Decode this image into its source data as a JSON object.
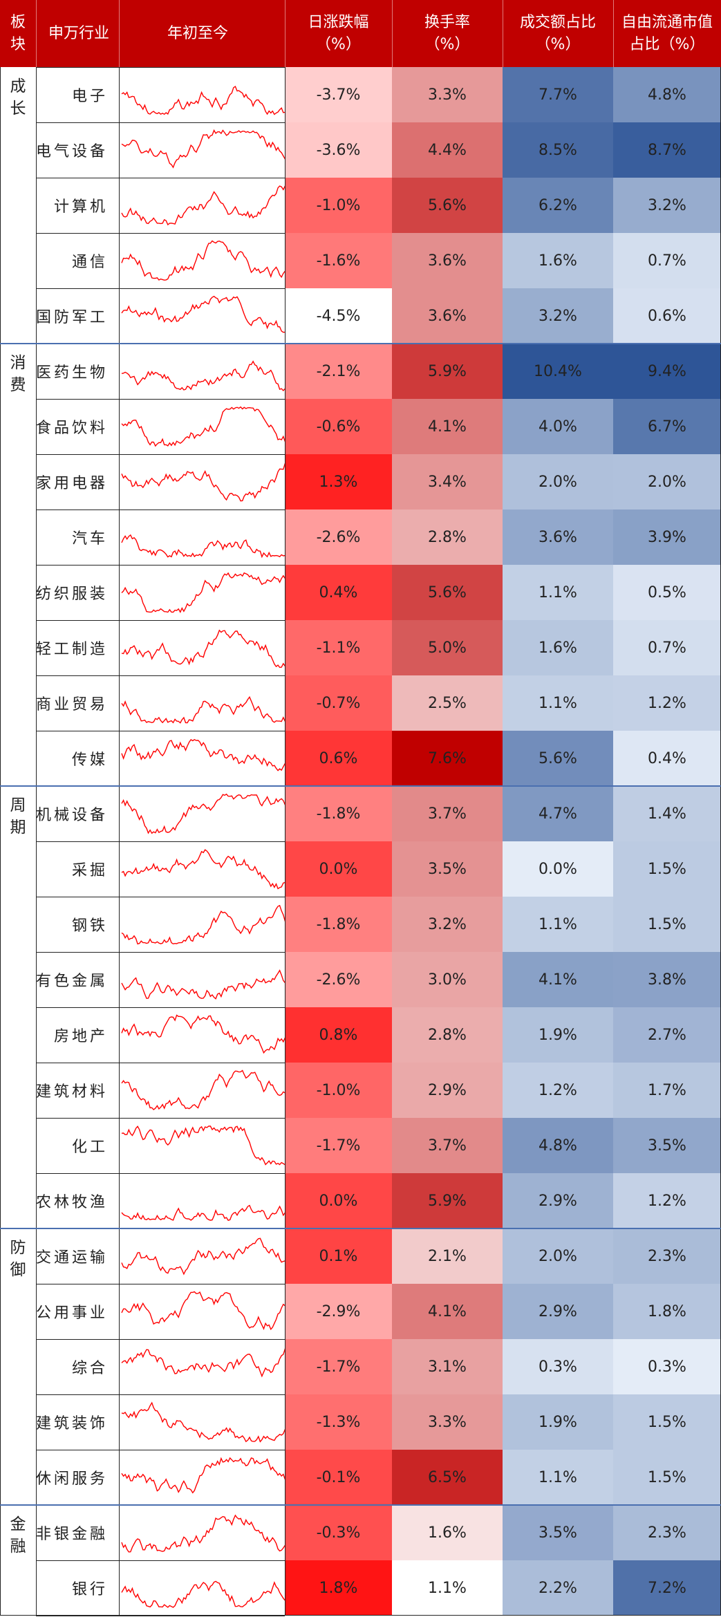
{
  "headers": {
    "sector": [
      "板",
      "块"
    ],
    "industry": [
      "申万行业"
    ],
    "ytd": [
      "年初至今"
    ],
    "daily_change": [
      "日涨跌幅",
      "（%）"
    ],
    "turnover": [
      "换手率",
      "（%）"
    ],
    "volume_share": [
      "成交额占比",
      "（%）"
    ],
    "float_cap_share": [
      "自由流通市值",
      "占比（%）"
    ]
  },
  "sectors": [
    {
      "name": [
        "成",
        "长"
      ],
      "rows": 5
    },
    {
      "name": [
        "消",
        "费"
      ],
      "rows": 8
    },
    {
      "name": [
        "周",
        "期"
      ],
      "rows": 8
    },
    {
      "name": [
        "防",
        "御"
      ],
      "rows": 5
    },
    {
      "name": [
        "金",
        "融"
      ],
      "rows": 2
    }
  ],
  "chart_data": {
    "type": "table",
    "columns": [
      "申万行业",
      "年初至今",
      "日涨跌幅（%）",
      "换手率（%）",
      "成交额占比（%）",
      "自由流通市值占比（%）"
    ],
    "rows": [
      {
        "industry": "电子",
        "daily_change": "-3.7%",
        "turnover": "3.3%",
        "volume_share": "7.7%",
        "float_cap_share": "4.8%",
        "dc": -3.7,
        "to": 3.3,
        "vs": 7.7,
        "fc": 4.8
      },
      {
        "industry": "电气设备",
        "daily_change": "-3.6%",
        "turnover": "4.4%",
        "volume_share": "8.5%",
        "float_cap_share": "8.7%",
        "dc": -3.6,
        "to": 4.4,
        "vs": 8.5,
        "fc": 8.7
      },
      {
        "industry": "计算机",
        "daily_change": "-1.0%",
        "turnover": "5.6%",
        "volume_share": "6.2%",
        "float_cap_share": "3.2%",
        "dc": -1.0,
        "to": 5.6,
        "vs": 6.2,
        "fc": 3.2
      },
      {
        "industry": "通信",
        "daily_change": "-1.6%",
        "turnover": "3.6%",
        "volume_share": "1.6%",
        "float_cap_share": "0.7%",
        "dc": -1.6,
        "to": 3.6,
        "vs": 1.6,
        "fc": 0.7
      },
      {
        "industry": "国防军工",
        "daily_change": "-4.5%",
        "turnover": "3.6%",
        "volume_share": "3.2%",
        "float_cap_share": "0.6%",
        "dc": -4.5,
        "to": 3.6,
        "vs": 3.2,
        "fc": 0.6
      },
      {
        "industry": "医药生物",
        "daily_change": "-2.1%",
        "turnover": "5.9%",
        "volume_share": "10.4%",
        "float_cap_share": "9.4%",
        "dc": -2.1,
        "to": 5.9,
        "vs": 10.4,
        "fc": 9.4
      },
      {
        "industry": "食品饮料",
        "daily_change": "-0.6%",
        "turnover": "4.1%",
        "volume_share": "4.0%",
        "float_cap_share": "6.7%",
        "dc": -0.6,
        "to": 4.1,
        "vs": 4.0,
        "fc": 6.7
      },
      {
        "industry": "家用电器",
        "daily_change": "1.3%",
        "turnover": "3.4%",
        "volume_share": "2.0%",
        "float_cap_share": "2.0%",
        "dc": 1.3,
        "to": 3.4,
        "vs": 2.0,
        "fc": 2.0
      },
      {
        "industry": "汽车",
        "daily_change": "-2.6%",
        "turnover": "2.8%",
        "volume_share": "3.6%",
        "float_cap_share": "3.9%",
        "dc": -2.6,
        "to": 2.8,
        "vs": 3.6,
        "fc": 3.9
      },
      {
        "industry": "纺织服装",
        "daily_change": "0.4%",
        "turnover": "5.6%",
        "volume_share": "1.1%",
        "float_cap_share": "0.5%",
        "dc": 0.4,
        "to": 5.6,
        "vs": 1.1,
        "fc": 0.5
      },
      {
        "industry": "轻工制造",
        "daily_change": "-1.1%",
        "turnover": "5.0%",
        "volume_share": "1.6%",
        "float_cap_share": "0.7%",
        "dc": -1.1,
        "to": 5.0,
        "vs": 1.6,
        "fc": 0.7
      },
      {
        "industry": "商业贸易",
        "daily_change": "-0.7%",
        "turnover": "2.5%",
        "volume_share": "1.1%",
        "float_cap_share": "1.2%",
        "dc": -0.7,
        "to": 2.5,
        "vs": 1.1,
        "fc": 1.2
      },
      {
        "industry": "传媒",
        "daily_change": "0.6%",
        "turnover": "7.6%",
        "volume_share": "5.6%",
        "float_cap_share": "0.4%",
        "dc": 0.6,
        "to": 7.6,
        "vs": 5.6,
        "fc": 0.4
      },
      {
        "industry": "机械设备",
        "daily_change": "-1.8%",
        "turnover": "3.7%",
        "volume_share": "4.7%",
        "float_cap_share": "1.4%",
        "dc": -1.8,
        "to": 3.7,
        "vs": 4.7,
        "fc": 1.4
      },
      {
        "industry": "采掘",
        "daily_change": "0.0%",
        "turnover": "3.5%",
        "volume_share": "0.0%",
        "float_cap_share": "1.5%",
        "dc": 0.0,
        "to": 3.5,
        "vs": 0.0,
        "fc": 1.5
      },
      {
        "industry": "钢铁",
        "daily_change": "-1.8%",
        "turnover": "3.2%",
        "volume_share": "1.1%",
        "float_cap_share": "1.5%",
        "dc": -1.8,
        "to": 3.2,
        "vs": 1.1,
        "fc": 1.5
      },
      {
        "industry": "有色金属",
        "daily_change": "-2.6%",
        "turnover": "3.0%",
        "volume_share": "4.1%",
        "float_cap_share": "3.8%",
        "dc": -2.6,
        "to": 3.0,
        "vs": 4.1,
        "fc": 3.8
      },
      {
        "industry": "房地产",
        "daily_change": "0.8%",
        "turnover": "2.8%",
        "volume_share": "1.9%",
        "float_cap_share": "2.7%",
        "dc": 0.8,
        "to": 2.8,
        "vs": 1.9,
        "fc": 2.7
      },
      {
        "industry": "建筑材料",
        "daily_change": "-1.0%",
        "turnover": "2.9%",
        "volume_share": "1.2%",
        "float_cap_share": "1.7%",
        "dc": -1.0,
        "to": 2.9,
        "vs": 1.2,
        "fc": 1.7
      },
      {
        "industry": "化工",
        "daily_change": "-1.7%",
        "turnover": "3.7%",
        "volume_share": "4.8%",
        "float_cap_share": "3.5%",
        "dc": -1.7,
        "to": 3.7,
        "vs": 4.8,
        "fc": 3.5
      },
      {
        "industry": "农林牧渔",
        "daily_change": "0.0%",
        "turnover": "5.9%",
        "volume_share": "2.9%",
        "float_cap_share": "1.2%",
        "dc": 0.0,
        "to": 5.9,
        "vs": 2.9,
        "fc": 1.2
      },
      {
        "industry": "交通运输",
        "daily_change": "0.1%",
        "turnover": "2.1%",
        "volume_share": "2.0%",
        "float_cap_share": "2.3%",
        "dc": 0.1,
        "to": 2.1,
        "vs": 2.0,
        "fc": 2.3
      },
      {
        "industry": "公用事业",
        "daily_change": "-2.9%",
        "turnover": "4.1%",
        "volume_share": "2.9%",
        "float_cap_share": "1.8%",
        "dc": -2.9,
        "to": 4.1,
        "vs": 2.9,
        "fc": 1.8
      },
      {
        "industry": "综合",
        "daily_change": "-1.7%",
        "turnover": "3.1%",
        "volume_share": "0.3%",
        "float_cap_share": "0.3%",
        "dc": -1.7,
        "to": 3.1,
        "vs": 0.3,
        "fc": 0.3
      },
      {
        "industry": "建筑装饰",
        "daily_change": "-1.3%",
        "turnover": "3.3%",
        "volume_share": "1.9%",
        "float_cap_share": "1.5%",
        "dc": -1.3,
        "to": 3.3,
        "vs": 1.9,
        "fc": 1.5
      },
      {
        "industry": "休闲服务",
        "daily_change": "-0.1%",
        "turnover": "6.5%",
        "volume_share": "1.1%",
        "float_cap_share": "1.5%",
        "dc": -0.1,
        "to": 6.5,
        "vs": 1.1,
        "fc": 1.5
      },
      {
        "industry": "非银金融",
        "daily_change": "-0.3%",
        "turnover": "1.6%",
        "volume_share": "3.5%",
        "float_cap_share": "2.3%",
        "dc": -0.3,
        "to": 1.6,
        "vs": 3.5,
        "fc": 2.3
      },
      {
        "industry": "银行",
        "daily_change": "1.8%",
        "turnover": "1.1%",
        "volume_share": "2.2%",
        "float_cap_share": "7.2%",
        "dc": 1.8,
        "to": 1.1,
        "vs": 2.2,
        "fc": 7.2
      }
    ],
    "grid": true
  },
  "colors": {
    "header_bg": "#c00000",
    "header_text": "#ffffff",
    "sparkline": "#ff0000",
    "red_strong": "#c00000",
    "red_light": "#fde4e4",
    "blue_strong": "#2e5597",
    "blue_light": "#e4ecf7",
    "grid": "#222222",
    "sector_sep": "#4a6fb0"
  }
}
